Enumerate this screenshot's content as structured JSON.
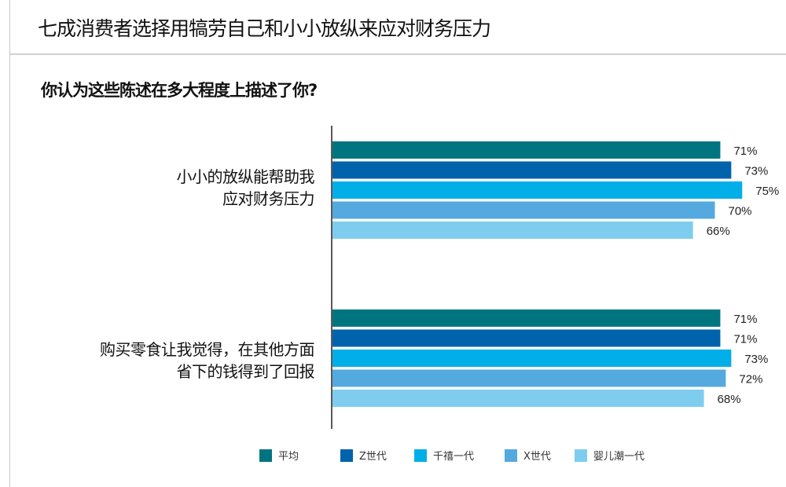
{
  "title": "七成消费者选择用犒劳自己和小小放纵来应对财务压力",
  "subtitle": "你认为这些陈述在多大程度上描述了你?",
  "chart_data": {
    "type": "bar",
    "orientation": "horizontal",
    "categories": [
      "小小的放纵能帮助我\n应对财务压力",
      "购买零食让我觉得，在其他方面\n省下的钱得到了回报"
    ],
    "category_lines": [
      [
        "小小的放纵能帮助我",
        "应对财务压力"
      ],
      [
        "购买零食让我觉得，在其他方面",
        "省下的钱得到了回报"
      ]
    ],
    "series": [
      {
        "name": "平均",
        "color": "#007580",
        "values": [
          71,
          71
        ],
        "labels": [
          "71%",
          "71%"
        ]
      },
      {
        "name": "Z世代",
        "color": "#0063ac",
        "values": [
          73,
          71
        ],
        "labels": [
          "73%",
          "71%"
        ]
      },
      {
        "name": "千禧一代",
        "color": "#00aee8",
        "values": [
          75,
          73
        ],
        "labels": [
          "75%",
          "73%"
        ]
      },
      {
        "name": "X世代",
        "color": "#54a9de",
        "values": [
          70,
          72
        ],
        "labels": [
          "70%",
          "72%"
        ]
      },
      {
        "name": "婴儿潮一代",
        "color": "#7ecdee",
        "values": [
          66,
          68
        ],
        "labels": [
          "66%",
          "68%"
        ]
      }
    ],
    "value_unit": "%",
    "grid": false,
    "legend_position": "bottom"
  }
}
